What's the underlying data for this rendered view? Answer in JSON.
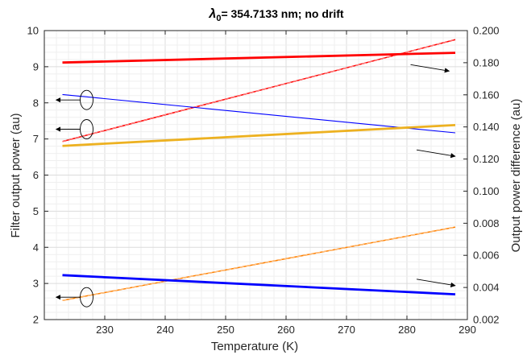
{
  "chart_data": {
    "type": "line",
    "title": "λ0= 354.7133 nm; no drift",
    "title_symbol": "λ",
    "title_subscript": "0",
    "title_rest": "= 354.7133 nm; no drift",
    "xlabel": "Temperature (K)",
    "ylabel_left": "Filter output power (au)",
    "ylabel_right": "Output power difference (au)",
    "xlim": [
      220,
      290
    ],
    "ylim_left": [
      2,
      10
    ],
    "ylim_right": [
      0.002,
      0.21
    ],
    "x_ticks": [
      "230",
      "240",
      "250",
      "260",
      "270",
      "280",
      "290"
    ],
    "y_left_ticks": [
      "2",
      "3",
      "4",
      "5",
      "6",
      "7",
      "8",
      "9",
      "10"
    ],
    "y_right_ticks": [
      "0.002",
      "0.004",
      "0.006",
      "0.008",
      "0.100",
      "0.120",
      "0.140",
      "0.160",
      "0.180",
      "0.200"
    ],
    "grid": "on (major and minor)",
    "left_axis_series": [
      {
        "color": "#ff0000",
        "style": "thin dashed",
        "x": [
          223,
          288
        ],
        "y": [
          6.93,
          9.75
        ]
      },
      {
        "color": "#0000ff",
        "style": "thin",
        "x": [
          223,
          288
        ],
        "y": [
          8.23,
          7.17
        ]
      },
      {
        "color": "#ff8000",
        "style": "thin dashed",
        "x": [
          223,
          288
        ],
        "y": [
          2.53,
          4.56
        ]
      },
      {
        "color": "#0000ff",
        "style": "thick",
        "x": [
          223,
          288
        ],
        "y": [
          3.23,
          2.7
        ]
      }
    ],
    "right_axis_series": [
      {
        "color": "#ff0000",
        "style": "thick",
        "x": [
          223,
          288
        ],
        "y": [
          0.187,
          0.194
        ]
      },
      {
        "color": "#edb120",
        "style": "thick",
        "x": [
          223,
          288
        ],
        "y": [
          0.127,
          0.142
        ]
      }
    ],
    "annotations": [
      {
        "type": "ellipse-left-arrow",
        "x": 227,
        "y": 8.08
      },
      {
        "type": "ellipse-left-arrow",
        "x": 227,
        "y": 7.27
      },
      {
        "type": "ellipse-left-arrow",
        "x": 227,
        "y": 2.62
      },
      {
        "type": "right-arrow",
        "x": 287,
        "y": 8.88
      },
      {
        "type": "right-arrow",
        "x": 288,
        "y": 6.52
      },
      {
        "type": "right-arrow",
        "x": 288,
        "y": 2.94
      }
    ]
  }
}
